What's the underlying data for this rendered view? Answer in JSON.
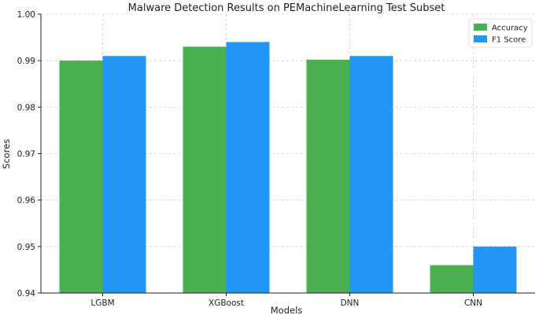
{
  "chart_data": {
    "type": "bar",
    "title": "Malware Detection Results on PEMachineLearning Test Subset",
    "xlabel": "Models",
    "ylabel": "Scores",
    "categories": [
      "LGBM",
      "XGBoost",
      "DNN",
      "CNN"
    ],
    "series": [
      {
        "name": "Accuracy",
        "color": "#4caf50",
        "values": [
          0.99,
          0.993,
          0.9902,
          0.946
        ]
      },
      {
        "name": "F1 Score",
        "color": "#2196f3",
        "values": [
          0.991,
          0.994,
          0.991,
          0.95
        ]
      }
    ],
    "ylim": [
      0.94,
      1.0
    ],
    "yticks": [
      "0.94",
      "0.95",
      "0.96",
      "0.97",
      "0.98",
      "0.99",
      "1.00"
    ],
    "grid": true,
    "legend_position": "top-right"
  }
}
